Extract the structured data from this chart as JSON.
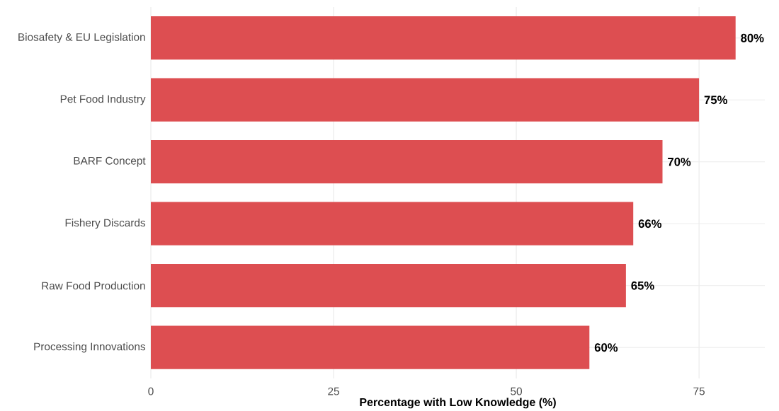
{
  "chart_data": {
    "type": "bar",
    "orientation": "horizontal",
    "xlabel": "Percentage with Low Knowledge (%)",
    "categories": [
      "Biosafety & EU Legislation",
      "Pet Food Industry",
      "BARF Concept",
      "Fishery Discards",
      "Raw Food Production",
      "Processing Innovations"
    ],
    "values": [
      80,
      75,
      70,
      66,
      65,
      60
    ],
    "value_labels": [
      "80%",
      "75%",
      "70%",
      "66%",
      "65%",
      "60%"
    ],
    "color": "#dd4e51",
    "xlim": [
      0,
      84
    ],
    "xticks": [
      0,
      25,
      50,
      75
    ],
    "grid": true
  }
}
